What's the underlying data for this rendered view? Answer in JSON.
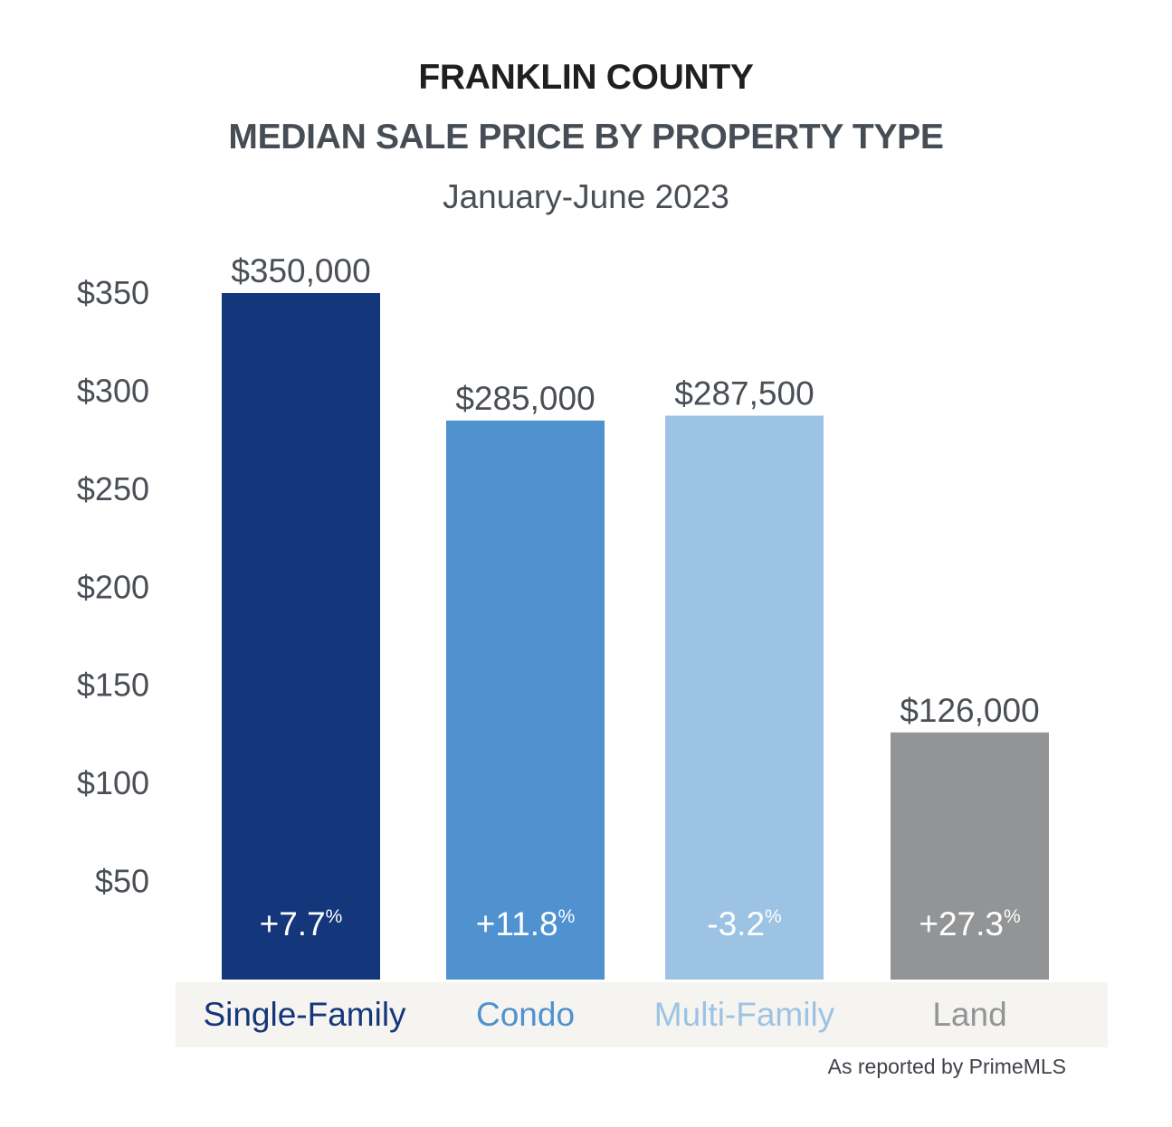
{
  "header": {
    "title": "FRANKLIN COUNTY",
    "subtitle": "MEDIAN SALE PRICE BY PROPERTY TYPE",
    "period": "January-June 2023"
  },
  "footer": {
    "source": "As reported by PrimeMLS"
  },
  "chart_data": {
    "type": "bar",
    "title": "FRANKLIN COUNTY MEDIAN SALE PRICE BY PROPERTY TYPE",
    "subtitle": "January-June 2023",
    "xlabel": "",
    "ylabel": "",
    "grid": false,
    "ylim": [
      0,
      350
    ],
    "yticks": [
      50,
      100,
      150,
      200,
      250,
      300,
      350
    ],
    "ytick_labels": [
      "$50",
      "$100",
      "$150",
      "$200",
      "$250",
      "$300",
      "$350"
    ],
    "categories": [
      "Single-Family",
      "Condo",
      "Multi-Family",
      "Land"
    ],
    "values": [
      350,
      285,
      287.5,
      126
    ],
    "value_labels": [
      "$350,000",
      "$285,000",
      "$287,500",
      "$126,000"
    ],
    "change_labels": [
      "+7.7",
      "+11.8",
      "-3.2",
      "+27.3"
    ],
    "change_suffix": "%",
    "bar_colors": [
      "#14367b",
      "#4f92cf",
      "#9dc3e4",
      "#939496"
    ],
    "category_label_colors": [
      "#14367b",
      "#4f92cf",
      "#9dc3e4",
      "#939496"
    ],
    "category_band_color": "#f5f4f0"
  }
}
